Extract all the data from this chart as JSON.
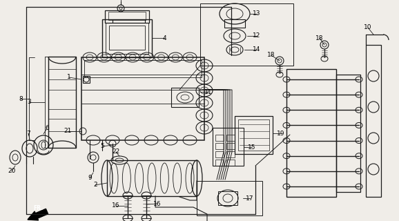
{
  "bg_color": "#f0ede8",
  "line_color": "#1a1a1a",
  "label_color": "#000000",
  "fig_w": 5.78,
  "fig_h": 3.2,
  "dpi": 100
}
